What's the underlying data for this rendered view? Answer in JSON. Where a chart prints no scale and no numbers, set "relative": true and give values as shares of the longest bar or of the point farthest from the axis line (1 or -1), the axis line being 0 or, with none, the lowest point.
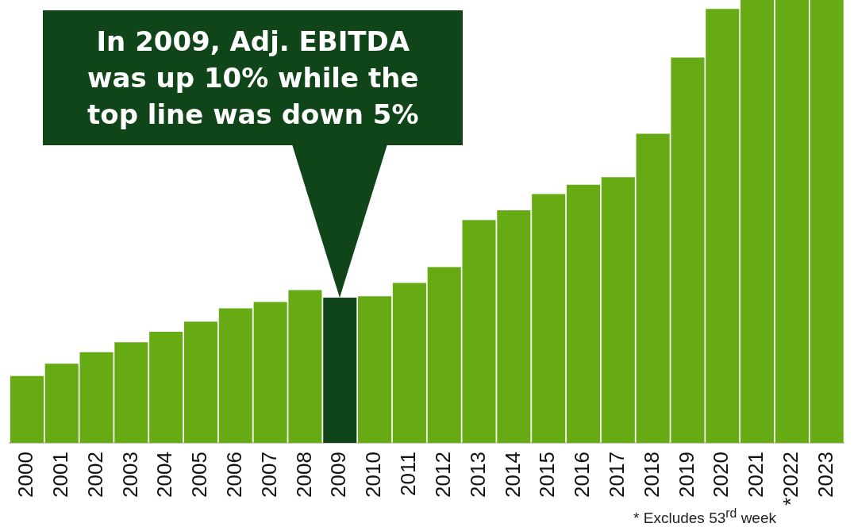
{
  "chart_data": {
    "type": "bar",
    "relative": true,
    "categories": [
      "2000",
      "2001",
      "2002",
      "2003",
      "2004",
      "2005",
      "2006",
      "2007",
      "2008",
      "2009",
      "2010",
      "2011",
      "2012",
      "2013",
      "2014",
      "2015",
      "2016",
      "2017",
      "2018",
      "2019",
      "2020",
      "2021",
      "*2022",
      "2023"
    ],
    "values": [
      0.151,
      0.179,
      0.205,
      0.227,
      0.251,
      0.274,
      0.304,
      0.318,
      0.345,
      0.328,
      0.331,
      0.361,
      0.397,
      0.503,
      0.525,
      0.562,
      0.583,
      0.6,
      0.698,
      0.87,
      0.98,
      1,
      1,
      1
    ],
    "colors": [
      "#66ab14",
      "#66ab14",
      "#66ab14",
      "#66ab14",
      "#66ab14",
      "#66ab14",
      "#66ab14",
      "#66ab14",
      "#66ab14",
      "#0f4519",
      "#66ab14",
      "#66ab14",
      "#66ab14",
      "#66ab14",
      "#66ab14",
      "#66ab14",
      "#66ab14",
      "#66ab14",
      "#66ab14",
      "#66ab14",
      "#66ab14",
      "#66ab14",
      "#66ab14",
      "#66ab14"
    ],
    "annotations": [
      "In 2009, Adj. EBITDA was up 10% while the top line was down 5%",
      "* Excludes 53$^{rd}$ week"
    ],
    "grid": false,
    "legend": false
  }
}
